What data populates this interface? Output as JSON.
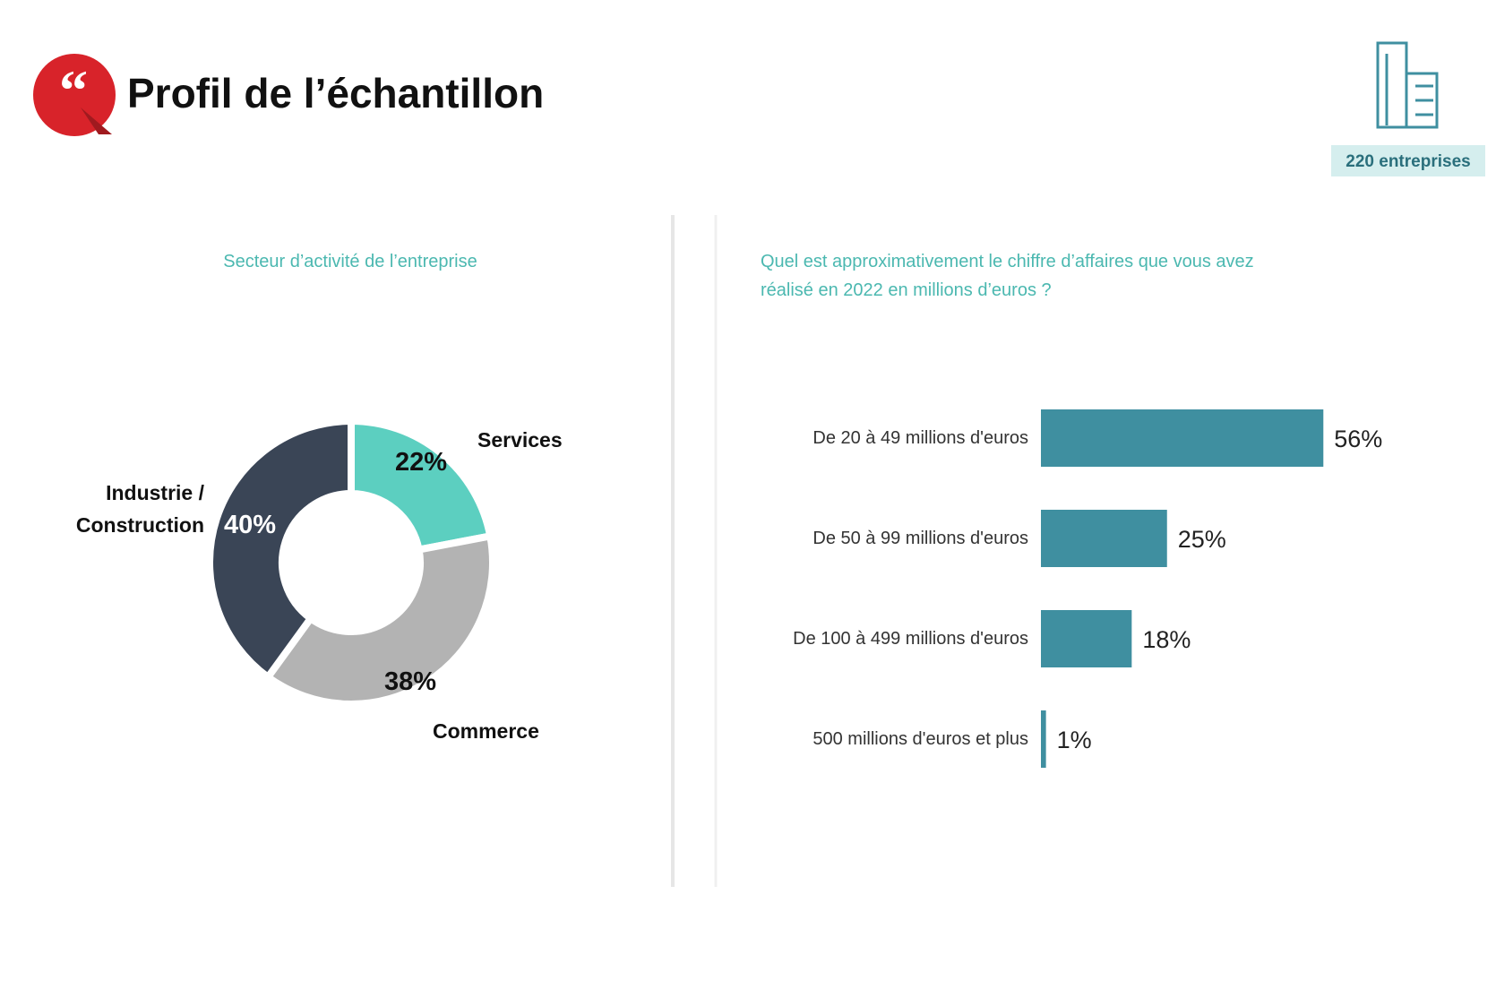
{
  "header": {
    "title": "Profil de l’échantillon",
    "badge": "220 entreprises"
  },
  "chart_data": [
    {
      "type": "pie",
      "donut": true,
      "title": "Secteur d’activité de l’entreprise",
      "categories": [
        "Services",
        "Commerce",
        "Industrie / Construction"
      ],
      "values": [
        22,
        38,
        40
      ],
      "value_labels": [
        "22%",
        "38%",
        "40%"
      ],
      "colors": [
        "#5ccfc0",
        "#b3b3b3",
        "#3a4556"
      ]
    },
    {
      "type": "bar",
      "orientation": "horizontal",
      "title": "Quel est approximativement le chiffre d’affaires que vous avez réalisé en 2022 en millions d’euros ?",
      "categories": [
        "De 20 à 49 millions d'euros",
        "De 50 à 99 millions d'euros",
        "De 100 à 499 millions d'euros",
        "500 millions d'euros et plus"
      ],
      "values": [
        56,
        25,
        18,
        1
      ],
      "value_labels": [
        "56%",
        "25%",
        "18%",
        "1%"
      ],
      "color": "#3f8fa0"
    }
  ]
}
